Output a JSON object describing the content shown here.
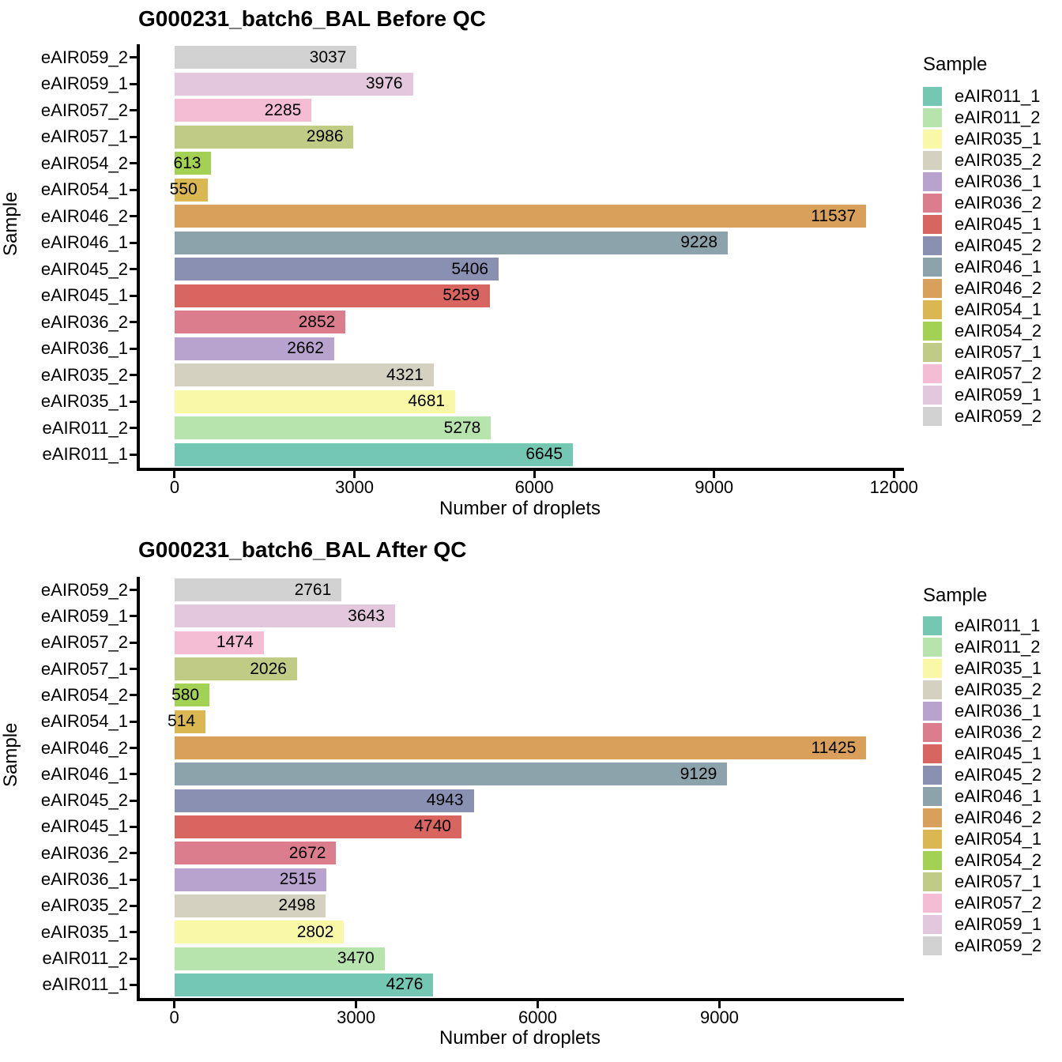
{
  "legend": {
    "title": "Sample",
    "entries": [
      {
        "label": "eAIR011_1",
        "color": "#74C7B2"
      },
      {
        "label": "eAIR011_2",
        "color": "#B7E3AC"
      },
      {
        "label": "eAIR035_1",
        "color": "#F8F8A6"
      },
      {
        "label": "eAIR035_2",
        "color": "#D4D1C1"
      },
      {
        "label": "eAIR036_1",
        "color": "#B7A3CE"
      },
      {
        "label": "eAIR036_2",
        "color": "#DC7D8E"
      },
      {
        "label": "eAIR045_1",
        "color": "#D8655F"
      },
      {
        "label": "eAIR045_2",
        "color": "#8A90B2"
      },
      {
        "label": "eAIR046_1",
        "color": "#8CA3AB"
      },
      {
        "label": "eAIR046_2",
        "color": "#D9A05C"
      },
      {
        "label": "eAIR054_1",
        "color": "#DBB751"
      },
      {
        "label": "eAIR054_2",
        "color": "#A2D153"
      },
      {
        "label": "eAIR057_1",
        "color": "#C0CC85"
      },
      {
        "label": "eAIR057_2",
        "color": "#F4BDD4"
      },
      {
        "label": "eAIR059_1",
        "color": "#E2C7DD"
      },
      {
        "label": "eAIR059_2",
        "color": "#D2D2D2"
      }
    ]
  },
  "chart_data": [
    {
      "type": "bar",
      "orientation": "horizontal",
      "title": "G000231_batch6_BAL Before QC",
      "xlabel": "Number of droplets",
      "ylabel": "Sample",
      "legend_title": "Sample",
      "legend_position": "right",
      "grid": false,
      "x_ticks": [
        0,
        3000,
        6000,
        9000,
        12000
      ],
      "x_axis_range": [
        -580,
        12115
      ],
      "categories_top_to_bottom": [
        "eAIR059_2",
        "eAIR059_1",
        "eAIR057_2",
        "eAIR057_1",
        "eAIR054_2",
        "eAIR054_1",
        "eAIR046_2",
        "eAIR046_1",
        "eAIR045_2",
        "eAIR045_1",
        "eAIR036_2",
        "eAIR036_1",
        "eAIR035_2",
        "eAIR035_1",
        "eAIR011_2",
        "eAIR011_1"
      ],
      "values_top_to_bottom": [
        3037,
        3976,
        2285,
        2986,
        613,
        550,
        11537,
        9228,
        5406,
        5259,
        2852,
        2662,
        4321,
        4681,
        5278,
        6645
      ]
    },
    {
      "type": "bar",
      "orientation": "horizontal",
      "title": "G000231_batch6_BAL After QC",
      "xlabel": "Number of droplets",
      "ylabel": "Sample",
      "legend_title": "Sample",
      "legend_position": "right",
      "grid": false,
      "x_ticks": [
        0,
        3000,
        6000,
        9000
      ],
      "x_axis_range": [
        -570,
        11995
      ],
      "categories_top_to_bottom": [
        "eAIR059_2",
        "eAIR059_1",
        "eAIR057_2",
        "eAIR057_1",
        "eAIR054_2",
        "eAIR054_1",
        "eAIR046_2",
        "eAIR046_1",
        "eAIR045_2",
        "eAIR045_1",
        "eAIR036_2",
        "eAIR036_1",
        "eAIR035_2",
        "eAIR035_1",
        "eAIR011_2",
        "eAIR011_1"
      ],
      "values_top_to_bottom": [
        2761,
        3643,
        1474,
        2026,
        580,
        514,
        11425,
        9129,
        4943,
        4740,
        2672,
        2515,
        2498,
        2802,
        3470,
        4276
      ]
    }
  ]
}
